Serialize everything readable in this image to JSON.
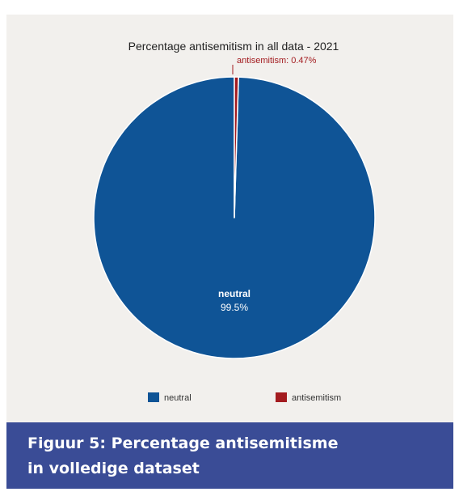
{
  "chart_data": {
    "type": "pie",
    "title": "Percentage antisemitism in all data - 2021",
    "slices": [
      {
        "name": "neutral",
        "value": 99.53,
        "label": "99.5%",
        "color": "#0f5496"
      },
      {
        "name": "antisemitism",
        "value": 0.47,
        "label": "antisemitism: 0.47%",
        "color": "#a31b1f"
      }
    ],
    "legend": {
      "position": "bottom",
      "entries": [
        "neutral",
        "antisemitism"
      ]
    }
  },
  "caption": {
    "line1": "Figuur 5: Percentage antisemitisme",
    "line2": "in volledige dataset"
  },
  "colors": {
    "panel_background": "#f2f0ed",
    "caption_background": "#3a4c96",
    "title_text": "#222222",
    "callout_text": "#a31b1f"
  }
}
